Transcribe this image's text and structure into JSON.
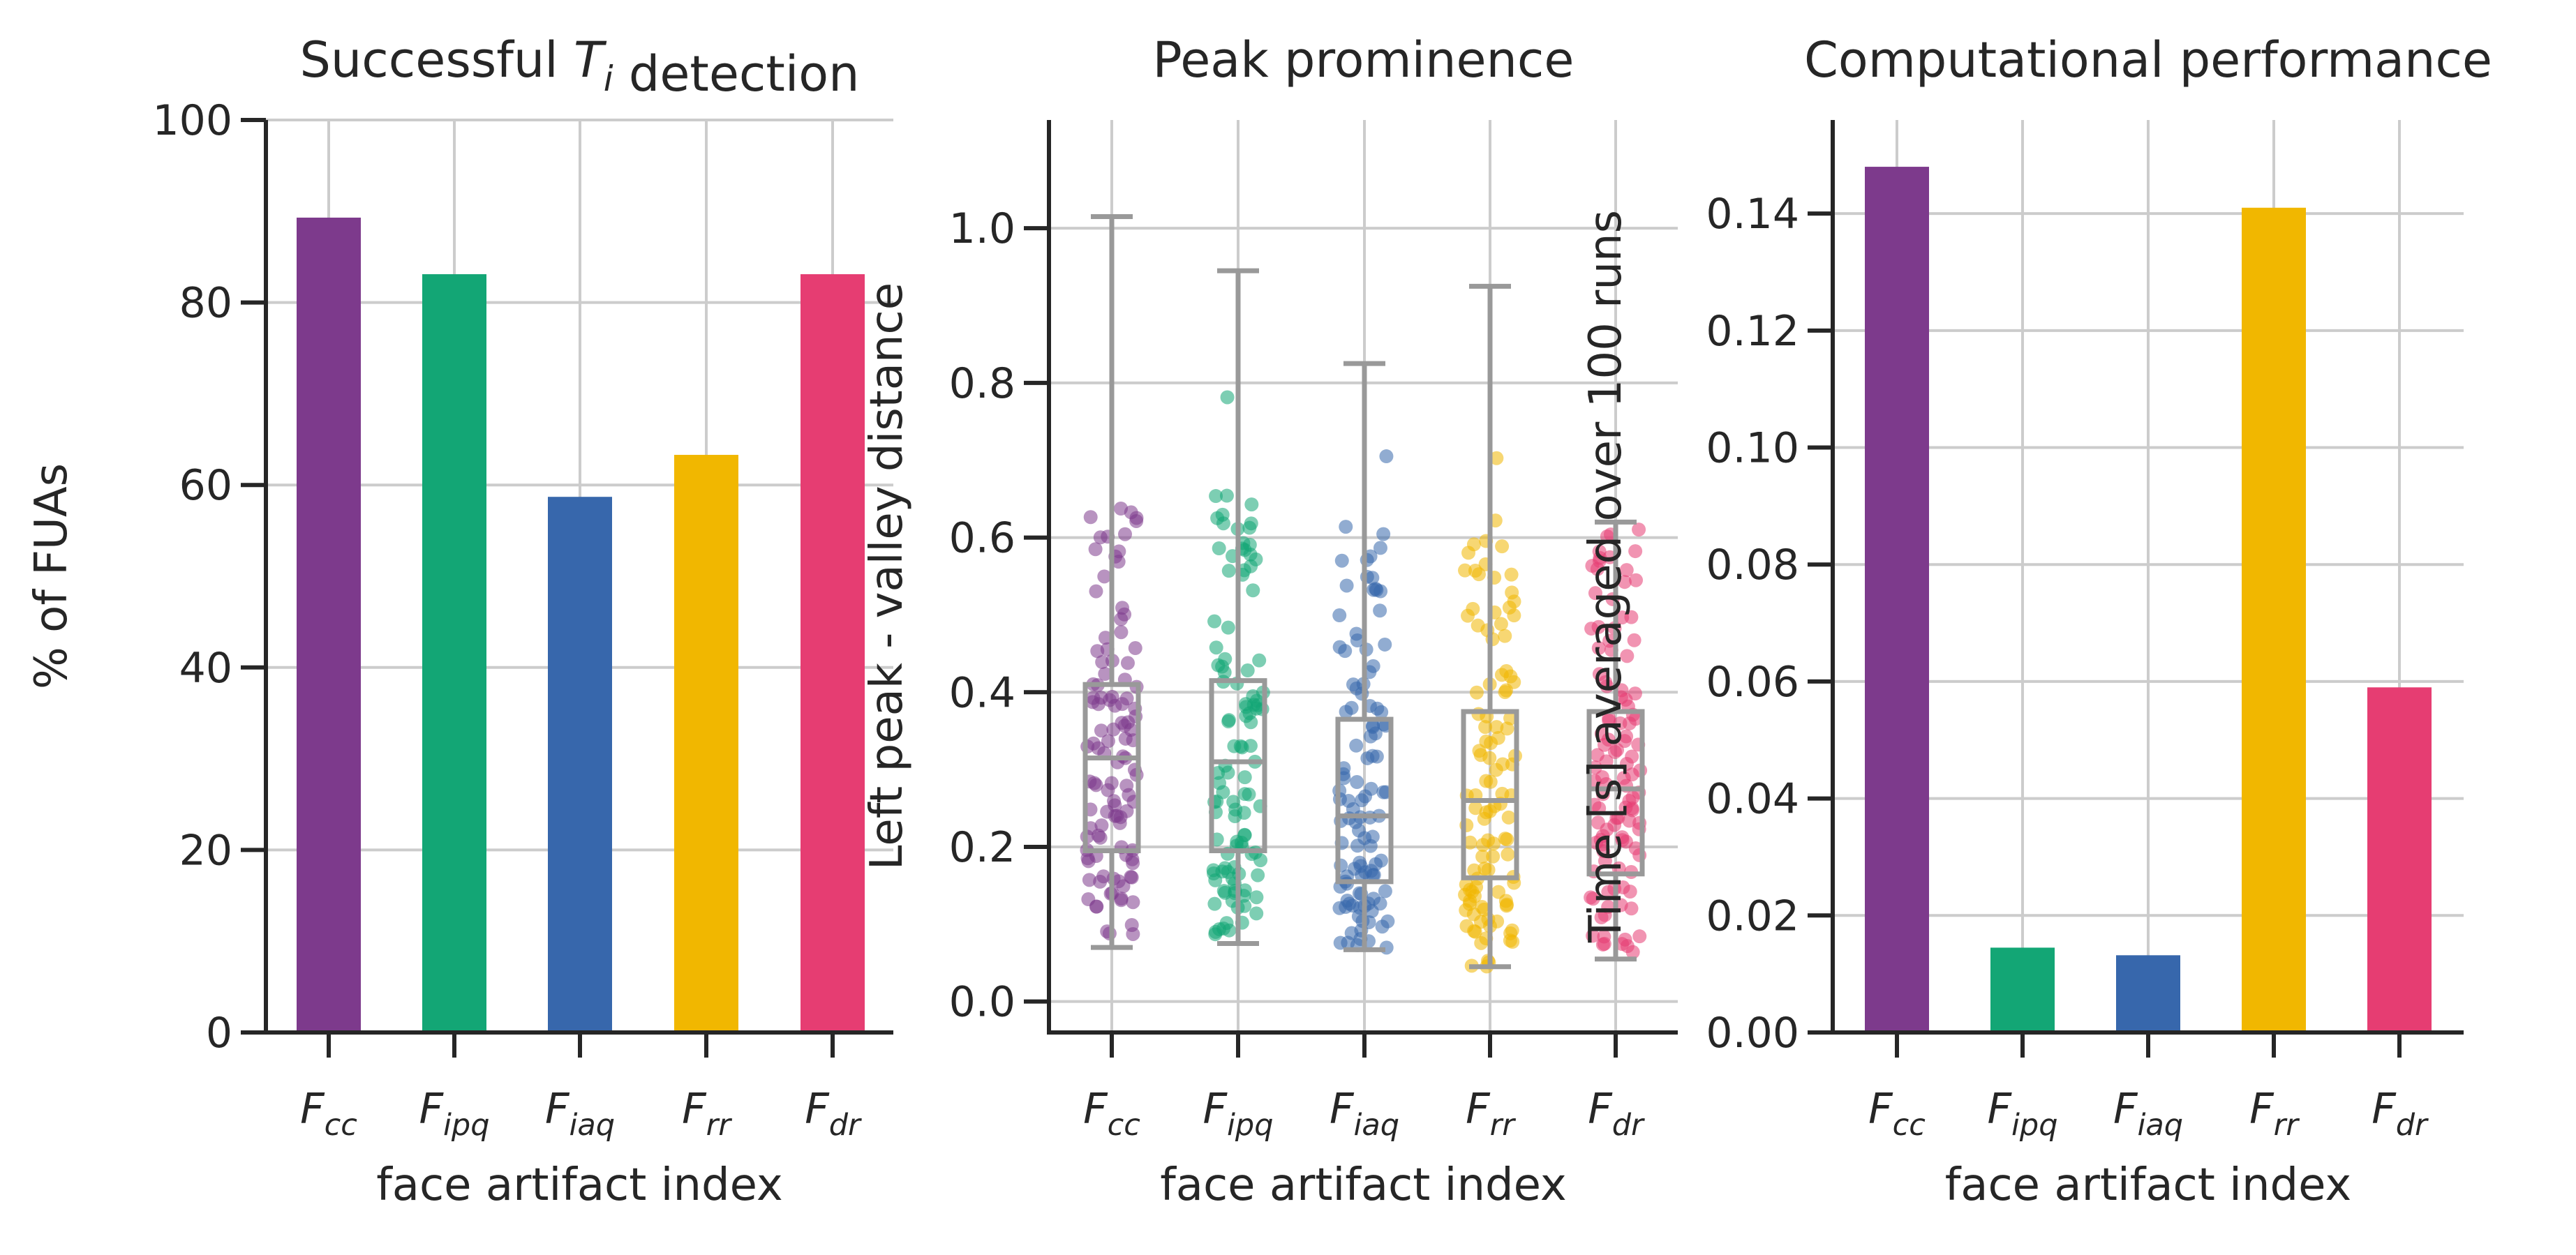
{
  "figure": {
    "xlabel": "face artifact index"
  },
  "colors": {
    "Fcc": "#7d3a8c",
    "Fipq": "#13a675",
    "Fiaq": "#3767ac",
    "Frr": "#f1b700",
    "Fdr": "#e63d72",
    "grid": "#cccccc",
    "axis": "#262626",
    "box": "#999999"
  },
  "chart_data": [
    {
      "type": "bar",
      "title": "Successful T_i detection",
      "xlabel": "face artifact index",
      "ylabel": "% of FUAs",
      "categories": [
        "F_cc",
        "F_ipq",
        "F_iaq",
        "F_rr",
        "F_dr"
      ],
      "values": [
        89.3,
        83.1,
        58.7,
        63.3,
        83.1
      ],
      "ylim": [
        0,
        100
      ],
      "yticks": [
        "0",
        "20",
        "40",
        "60",
        "80",
        "100"
      ],
      "grid": true
    },
    {
      "type": "box",
      "title": "Peak prominence",
      "xlabel": "face artifact index",
      "ylabel": "Left peak - valley distance",
      "categories": [
        "F_cc",
        "F_ipq",
        "F_iaq",
        "F_rr",
        "F_dr"
      ],
      "ylim": [
        -0.04,
        1.14
      ],
      "yticks": [
        "0.0",
        "0.2",
        "0.4",
        "0.6",
        "0.8",
        "1.0"
      ],
      "grid": true,
      "boxes": [
        {
          "min": 0.07,
          "q1": 0.195,
          "median": 0.315,
          "q3": 0.41,
          "max": 1.015
        },
        {
          "min": 0.075,
          "q1": 0.195,
          "median": 0.31,
          "q3": 0.415,
          "max": 0.945
        },
        {
          "min": 0.067,
          "q1": 0.155,
          "median": 0.24,
          "q3": 0.365,
          "max": 0.825
        },
        {
          "min": 0.045,
          "q1": 0.16,
          "median": 0.26,
          "q3": 0.375,
          "max": 0.925
        },
        {
          "min": 0.055,
          "q1": 0.165,
          "median": 0.275,
          "q3": 0.375,
          "max": 0.62
        }
      ]
    },
    {
      "type": "bar",
      "title": "Computational performance",
      "xlabel": "face artifact index",
      "ylabel": "Time [s] averaged over 100 runs",
      "categories": [
        "F_cc",
        "F_ipq",
        "F_iaq",
        "F_rr",
        "F_dr"
      ],
      "values": [
        0.148,
        0.0145,
        0.0132,
        0.141,
        0.059
      ],
      "ylim": [
        0,
        0.156
      ],
      "yticks": [
        "0.00",
        "0.02",
        "0.04",
        "0.06",
        "0.08",
        "0.10",
        "0.12",
        "0.14"
      ],
      "grid": true
    }
  ]
}
